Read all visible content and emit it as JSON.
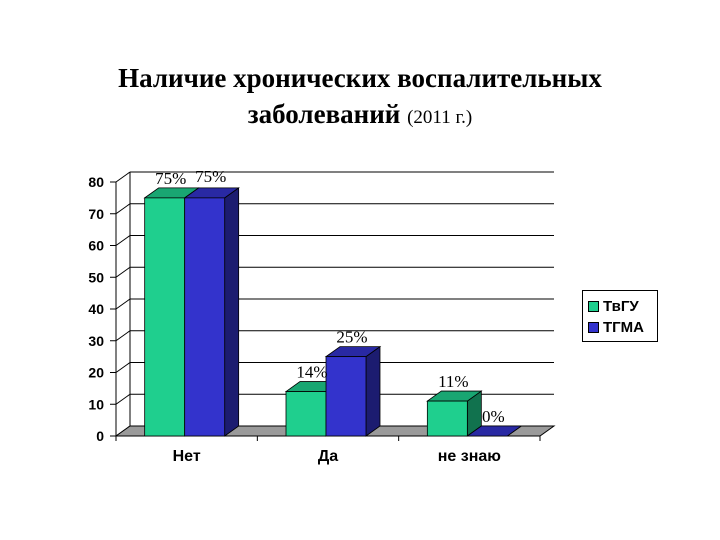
{
  "title": {
    "line1": "Наличие хронических воспалительных",
    "line2": "заболеваний",
    "year": "(2011 г.)"
  },
  "chart_data": {
    "type": "bar",
    "categories": [
      "Нет",
      "Да",
      "не знаю"
    ],
    "series": [
      {
        "name": "ТвГУ",
        "values": [
          75,
          14,
          11
        ],
        "labels": [
          "75%",
          "14%",
          "11%"
        ],
        "color": "#1fcf8e"
      },
      {
        "name": "ТГМА",
        "values": [
          75,
          25,
          0
        ],
        "labels": [
          "75%",
          "25%",
          "0%"
        ],
        "color": "#3333cc"
      }
    ],
    "ylim": [
      0,
      80
    ],
    "yticks": [
      "0",
      "10",
      "20",
      "30",
      "40",
      "50",
      "60",
      "70",
      "80"
    ],
    "grid": true,
    "legend_position": "right",
    "three_d": true
  }
}
